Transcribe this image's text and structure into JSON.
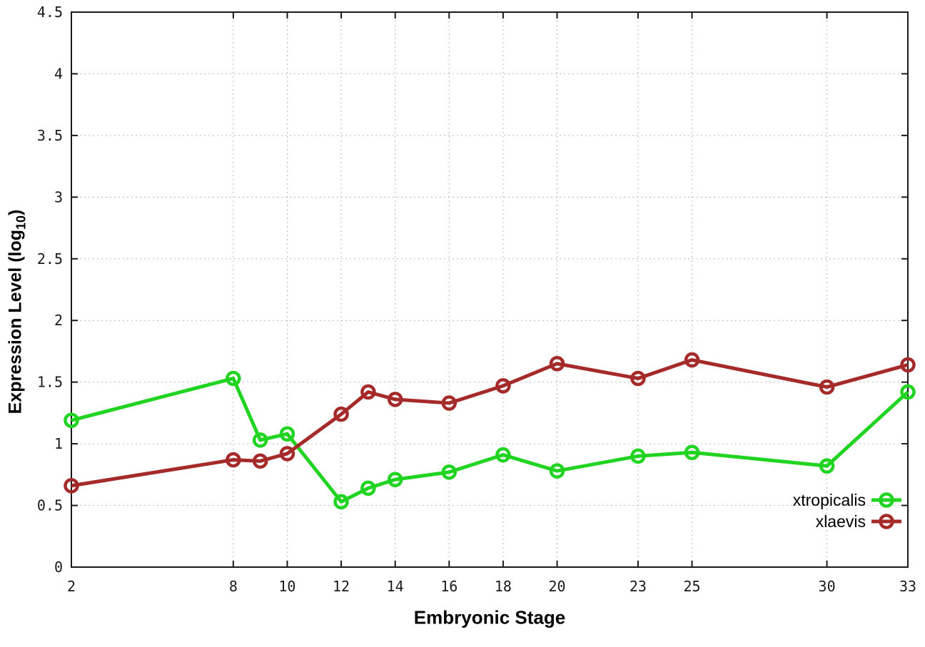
{
  "chart_data": {
    "type": "line",
    "title": "",
    "xlabel": "Embryonic Stage",
    "ylabel": "Expression Level (log10)",
    "ylabel_parts": {
      "pre": "Expression Level (log",
      "sub": "10",
      "post": ")"
    },
    "x": [
      2,
      8,
      9,
      10,
      12,
      13,
      14,
      16,
      18,
      20,
      23,
      25,
      30,
      33
    ],
    "xlim": [
      2,
      33
    ],
    "ylim": [
      0,
      4.5
    ],
    "xticks": [
      2,
      8,
      10,
      12,
      14,
      16,
      18,
      20,
      23,
      25,
      30,
      33
    ],
    "xtick_labels": [
      "2",
      "8",
      "10",
      "12",
      "14",
      "16",
      "18",
      "20",
      "23",
      "25",
      "30",
      "33"
    ],
    "yticks": [
      0,
      0.5,
      1,
      1.5,
      2,
      2.5,
      3,
      3.5,
      4,
      4.5
    ],
    "ytick_labels": [
      "0",
      "0.5",
      "1",
      "1.5",
      "2",
      "2.5",
      "3",
      "3.5",
      "4",
      "4.5"
    ],
    "grid": true,
    "grid_color": "#b8b8b8",
    "axis_color": "#1a1a1a",
    "legend_position": "bottom-right-inside",
    "series": [
      {
        "name": "xtropicalis",
        "color": "#21d421",
        "marker": "open-circle",
        "values": [
          1.19,
          1.53,
          1.03,
          1.08,
          0.53,
          0.64,
          0.71,
          0.77,
          0.91,
          0.78,
          0.9,
          0.93,
          0.82,
          1.42
        ]
      },
      {
        "name": "xlaevis",
        "color": "#a52a2a",
        "marker": "open-circle",
        "values": [
          0.66,
          0.87,
          0.86,
          0.92,
          1.24,
          1.42,
          1.36,
          1.33,
          1.47,
          1.65,
          1.53,
          1.68,
          1.46,
          1.64
        ]
      }
    ]
  }
}
